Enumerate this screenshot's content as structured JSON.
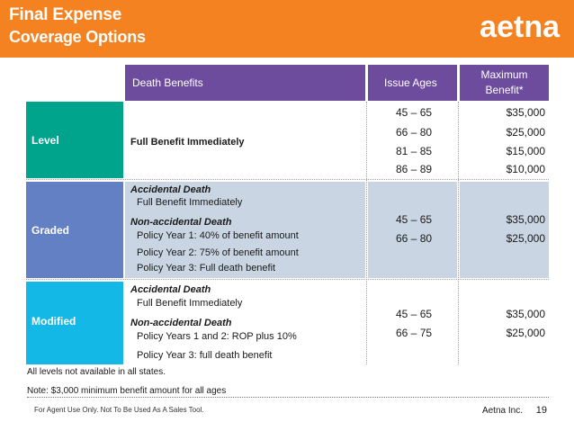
{
  "header": {
    "title_line1": "Final Expense",
    "title_line2": "Coverage Options",
    "logo": "aetna"
  },
  "table": {
    "headers": {
      "death_benefits": "Death Benefits",
      "issue_ages": "Issue Ages",
      "max_benefit_line1": "Maximum",
      "max_benefit_line2": "Benefit*"
    },
    "level": {
      "label": "Level",
      "benefit": "Full Benefit Immediately",
      "ages": [
        "45 – 65",
        "66 – 80",
        "81 – 85",
        "86 – 89"
      ],
      "max": [
        "$35,000",
        "$25,000",
        "$15,000",
        "$10,000"
      ]
    },
    "graded": {
      "label": "Graded",
      "accidental_heading": "Accidental Death",
      "accidental_detail": "Full Benefit Immediately",
      "nonaccidental_heading": "Non-accidental Death",
      "policy_lines": [
        "Policy Year 1: 40% of benefit amount",
        "Policy Year 2: 75% of benefit amount",
        "Policy Year 3: Full death benefit"
      ],
      "ages": [
        "45 – 65",
        "66 – 80"
      ],
      "max": [
        "$35,000",
        "$25,000"
      ]
    },
    "modified": {
      "label": "Modified",
      "accidental_heading": "Accidental Death",
      "accidental_detail": "Full Benefit Immediately",
      "nonaccidental_heading": "Non-accidental Death",
      "policy_lines": [
        "Policy Years 1 and 2: ROP plus 10%",
        "Policy Year 3: full death benefit"
      ],
      "ages": [
        "45 – 65",
        "66 – 75"
      ],
      "max": [
        "$35,000",
        "$25,000"
      ]
    }
  },
  "notes": {
    "availability": "All levels not available in all states.",
    "minimum": "Note: $3,000 minimum benefit amount for all ages"
  },
  "footer": {
    "disclaimer": "For Agent Use Only.  Not To Be Used As A Sales Tool.",
    "company": "Aetna Inc.",
    "page": "19"
  }
}
